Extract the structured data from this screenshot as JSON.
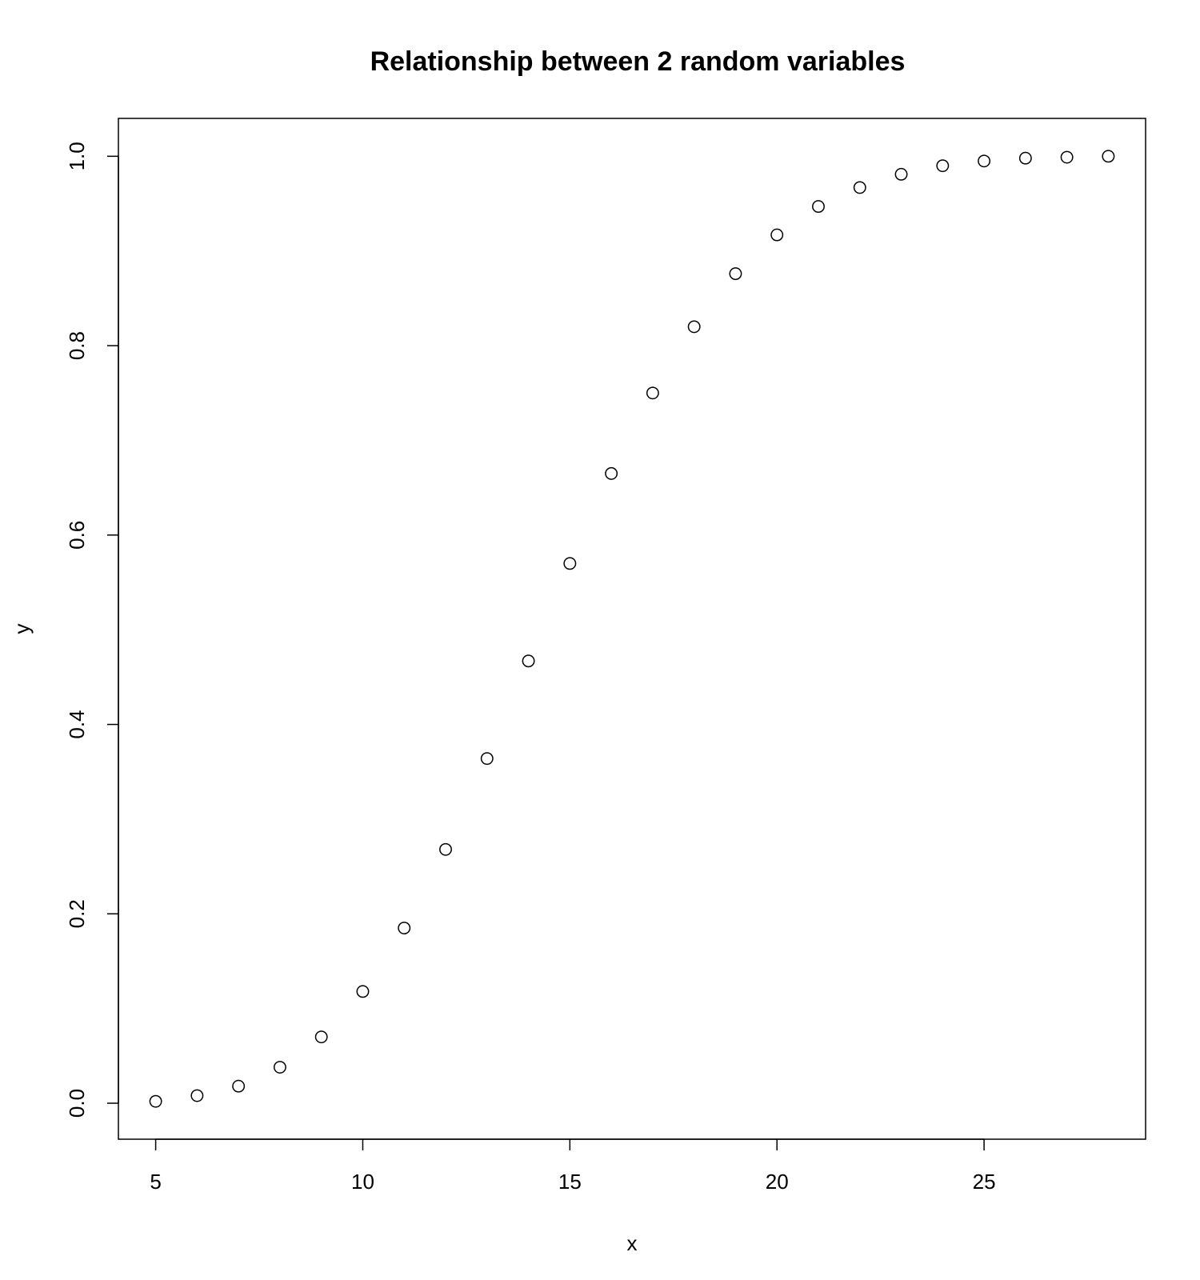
{
  "chart_data": {
    "type": "scatter",
    "title": "Relationship between 2 random variables",
    "xlabel": "x",
    "ylabel": "y",
    "xlim": [
      4.1,
      28.9
    ],
    "ylim": [
      -0.038,
      1.04
    ],
    "x_ticks": [
      5,
      10,
      15,
      20,
      25
    ],
    "y_ticks": [
      0.0,
      0.2,
      0.4,
      0.6,
      0.8,
      1.0
    ],
    "x_tick_labels": [
      "5",
      "10",
      "15",
      "20",
      "25"
    ],
    "y_tick_labels": [
      "0.0",
      "0.2",
      "0.4",
      "0.6",
      "0.8",
      "1.0"
    ],
    "grid": false,
    "marker": "open-circle",
    "series": [
      {
        "x": [
          5,
          6,
          7,
          8,
          9,
          10,
          11,
          12,
          13,
          14,
          15,
          16,
          17,
          18,
          19,
          20,
          21,
          22,
          23,
          24,
          25,
          26,
          27,
          28
        ],
        "y": [
          0.002,
          0.008,
          0.018,
          0.038,
          0.07,
          0.118,
          0.185,
          0.268,
          0.364,
          0.467,
          0.57,
          0.665,
          0.75,
          0.82,
          0.876,
          0.917,
          0.947,
          0.967,
          0.981,
          0.99,
          0.995,
          0.998,
          0.999,
          1.0
        ]
      }
    ],
    "colors": {
      "marker_stroke": "#000000",
      "axes": "#000000",
      "background": "#ffffff"
    }
  }
}
